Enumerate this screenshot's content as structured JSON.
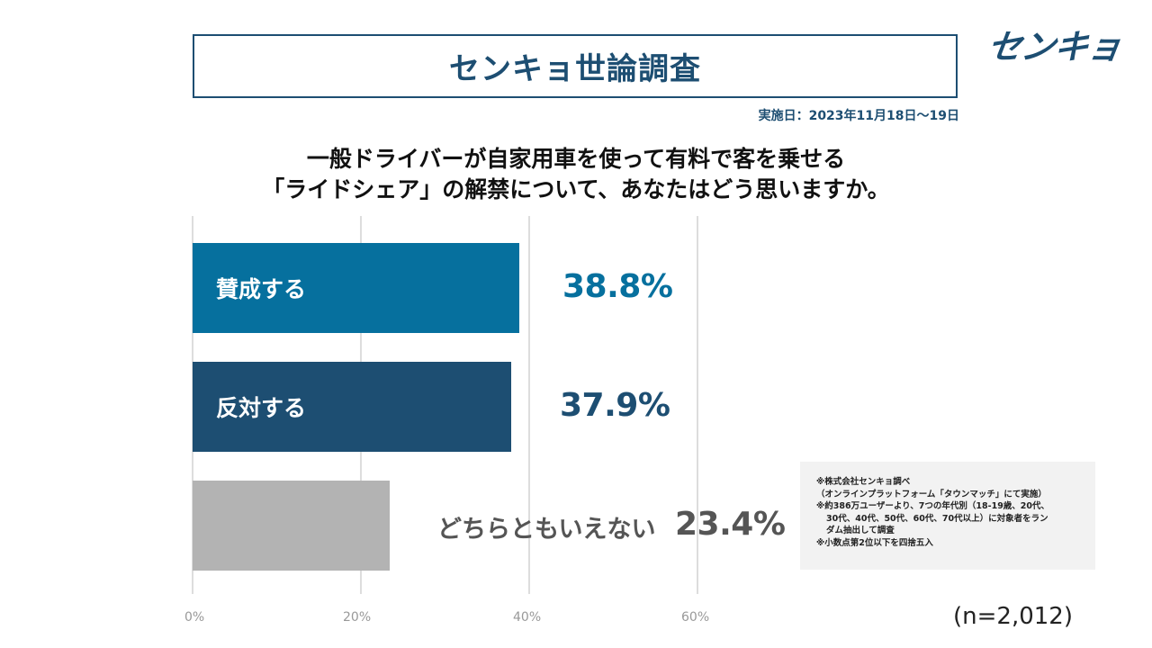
{
  "title": "センキョ世論調査",
  "logo_text": "センキョ",
  "date": "実施日：2023年11月18日～19日",
  "question_line1": "一般ドライバーが自家用車を使って有料で客を乗せる",
  "question_line2": "「ライドシェア」の解禁について、あなたはどう思いますか。",
  "colors": {
    "favor": "#06709e",
    "oppose": "#1d4e72",
    "neither": "#b3b3b3",
    "neither_text": "#555555"
  },
  "chart_data": {
    "type": "bar",
    "orientation": "horizontal",
    "categories": [
      "賛成する",
      "反対する",
      "どちらともいえない"
    ],
    "values": [
      38.8,
      37.9,
      23.4
    ],
    "value_labels": [
      "38.8%",
      "37.9%",
      "23.4%"
    ],
    "xlim": [
      0,
      60
    ],
    "xticks": [
      "0%",
      "20%",
      "40%",
      "60%"
    ],
    "grid": true
  },
  "notes": [
    "※株式会社センキョ調べ",
    "（オンラインプラットフォーム「タウンマッチ」にて実施）",
    "※約386万ユーザーより、7つの年代別（18-19歳、20代、",
    "30代、40代、50代、60代、70代以上）に対象者をラン",
    "ダム抽出して調査",
    "※小数点第2位以下を四捨五入"
  ],
  "sample_size": "(n=2,012)"
}
